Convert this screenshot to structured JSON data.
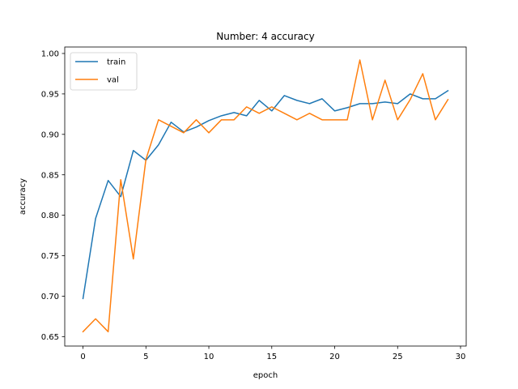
{
  "chart_data": {
    "type": "line",
    "title": "Number: 4 accuracy",
    "xlabel": "epoch",
    "ylabel": "accuracy",
    "xlim": [
      -1.45,
      30.45
    ],
    "ylim": [
      0.6383,
      1.008
    ],
    "xticks": [
      0,
      5,
      10,
      15,
      20,
      25,
      30
    ],
    "xtick_labels": [
      "0",
      "5",
      "10",
      "15",
      "20",
      "25",
      "30"
    ],
    "yticks": [
      0.65,
      0.7,
      0.75,
      0.8,
      0.85,
      0.9,
      0.95,
      1.0
    ],
    "ytick_labels": [
      "0.65",
      "0.70",
      "0.75",
      "0.80",
      "0.85",
      "0.90",
      "0.95",
      "1.00"
    ],
    "grid": false,
    "legend_position": "top-left",
    "x": [
      0,
      1,
      2,
      3,
      4,
      5,
      6,
      7,
      8,
      9,
      10,
      11,
      12,
      13,
      14,
      15,
      16,
      17,
      18,
      19,
      20,
      21,
      22,
      23,
      24,
      25,
      26,
      27,
      28,
      29
    ],
    "series": [
      {
        "name": "train",
        "color": "#1f77b4",
        "values": [
          0.697,
          0.796,
          0.843,
          0.823,
          0.88,
          0.868,
          0.887,
          0.915,
          0.903,
          0.909,
          0.917,
          0.923,
          0.927,
          0.923,
          0.942,
          0.929,
          0.948,
          0.942,
          0.938,
          0.944,
          0.929,
          0.933,
          0.938,
          0.938,
          0.94,
          0.938,
          0.95,
          0.944,
          0.944,
          0.954
        ]
      },
      {
        "name": "val",
        "color": "#ff7f0e",
        "values": [
          0.656,
          0.672,
          0.656,
          0.844,
          0.746,
          0.869,
          0.918,
          0.91,
          0.902,
          0.918,
          0.902,
          0.918,
          0.918,
          0.934,
          0.926,
          0.934,
          0.926,
          0.918,
          0.926,
          0.918,
          0.918,
          0.918,
          0.992,
          0.918,
          0.967,
          0.918,
          0.943,
          0.975,
          0.918,
          0.943
        ]
      }
    ]
  }
}
